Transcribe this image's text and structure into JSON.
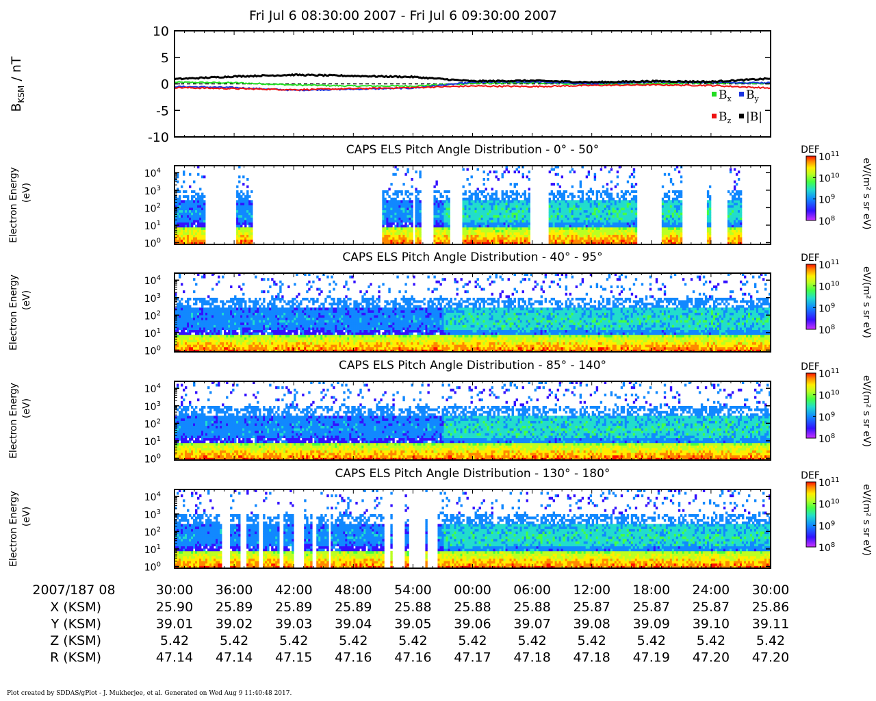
{
  "page": {
    "title": "Fri Jul 6 08:30:00 2007 - Fri Jul 6 09:30:00 2007",
    "footer": "Plot created by SDDAS/gPlot - J. Mukherjee, et al.  Generated on Wed Aug 9 11:40:48 2017."
  },
  "chart_data": [
    {
      "type": "line",
      "name": "magnetometer",
      "ylabel_main": "B",
      "ylabel_sub": "KSM",
      "ylabel_unit": " / nT",
      "ylim": [
        -10,
        10
      ],
      "yticks": [
        10,
        5,
        0,
        -5,
        -10
      ],
      "x": [
        "08:30",
        "08:36",
        "08:42",
        "08:48",
        "08:54",
        "09:00",
        "09:06",
        "09:12",
        "09:18",
        "09:24",
        "09:30"
      ],
      "zero_line": true,
      "legend_placement": "bottom-right",
      "series": [
        {
          "name": "Bx",
          "label_main": "B",
          "label_sub": "x",
          "color": "#22dd22",
          "values": [
            0.3,
            0.2,
            -0.2,
            -0.4,
            -0.4,
            0.1,
            0.2,
            -0.1,
            0.0,
            0.2,
            0.1
          ]
        },
        {
          "name": "By",
          "label_main": "B",
          "label_sub": "y",
          "color": "#1a33e0",
          "values": [
            -0.5,
            -0.7,
            -1.2,
            -1.0,
            -0.8,
            0.3,
            0.4,
            0.0,
            0.4,
            0.3,
            0.2
          ]
        },
        {
          "name": "Bz",
          "label_main": "B",
          "label_sub": "z",
          "color": "#ee1111",
          "values": [
            -0.7,
            -0.9,
            -1.1,
            -0.9,
            -0.7,
            -0.4,
            -0.5,
            -0.3,
            -0.2,
            -0.3,
            -0.8
          ]
        },
        {
          "name": "|B|",
          "label_main": "|B|",
          "label_sub": "",
          "color": "#000000",
          "values": [
            0.9,
            1.4,
            1.7,
            1.5,
            1.3,
            0.5,
            0.6,
            0.3,
            0.5,
            0.4,
            1.0
          ]
        }
      ]
    },
    {
      "type": "heatmap",
      "title": "CAPS ELS Pitch Angle Distribution - 0° - 50°",
      "ylabel": "Electron Energy",
      "yunit": "(eV)",
      "yticks": [
        "10",
        "10",
        "10",
        "10",
        "10"
      ],
      "ytick_exp": [
        "0",
        "1",
        "2",
        "3",
        "4"
      ],
      "colorbar": {
        "label": "DEF",
        "unit": "eV/(m² s sr eV)",
        "ticks": [
          "10",
          "10",
          "10",
          "10"
        ],
        "tick_exp": [
          "8",
          "9",
          "10",
          "11"
        ]
      },
      "gaps": [
        [
          0.1,
          0.2
        ],
        [
          0.26,
          0.45
        ],
        [
          0.45,
          0.52
        ],
        [
          0.52,
          0.69
        ],
        [
          0.795,
          0.805
        ],
        [
          0.822,
          0.844
        ],
        [
          0.848,
          0.868
        ],
        [
          0.924,
          0.965
        ],
        [
          1.19,
          1.25
        ],
        [
          1.55,
          1.63
        ],
        [
          1.7,
          1.78
        ],
        [
          1.8,
          1.85
        ],
        [
          1.9,
          2.0
        ]
      ]
    },
    {
      "type": "heatmap",
      "title": "CAPS ELS Pitch Angle Distribution - 40° - 95°",
      "ylabel": "Electron Energy",
      "yunit": "(eV)",
      "yticks": [
        "10",
        "10",
        "10",
        "10",
        "10"
      ],
      "ytick_exp": [
        "0",
        "1",
        "2",
        "3",
        "4"
      ],
      "colorbar": {
        "label": "DEF",
        "unit": "eV/(m² s sr eV)",
        "ticks": [
          "10",
          "10",
          "10",
          "10"
        ],
        "tick_exp": [
          "8",
          "9",
          "10",
          "11"
        ]
      },
      "gaps": []
    },
    {
      "type": "heatmap",
      "title": "CAPS ELS Pitch Angle Distribution - 85° - 140°",
      "ylabel": "Electron Energy",
      "yunit": "(eV)",
      "yticks": [
        "10",
        "10",
        "10",
        "10",
        "10"
      ],
      "ytick_exp": [
        "0",
        "1",
        "2",
        "3",
        "4"
      ],
      "colorbar": {
        "label": "DEF",
        "unit": "eV/(m² s sr eV)",
        "ticks": [
          "10",
          "10",
          "10",
          "10"
        ],
        "tick_exp": [
          "8",
          "9",
          "10",
          "11"
        ]
      },
      "gaps": []
    },
    {
      "type": "heatmap",
      "title": "CAPS ELS Pitch Angle Distribution - 130° - 180°",
      "ylabel": "Electron Energy",
      "yunit": "(eV)",
      "yticks": [
        "10",
        "10",
        "10",
        "10",
        "10"
      ],
      "ytick_exp": [
        "0",
        "1",
        "2",
        "3",
        "4"
      ],
      "colorbar": {
        "label": "DEF",
        "unit": "eV/(m² s sr eV)",
        "ticks": [
          "10",
          "10",
          "10",
          "10"
        ],
        "tick_exp": [
          "8",
          "9",
          "10",
          "11"
        ]
      },
      "gaps": [
        [
          0.155,
          0.185
        ],
        [
          0.22,
          0.235
        ],
        [
          0.28,
          0.295
        ],
        [
          0.35,
          0.365
        ],
        [
          0.4,
          0.43
        ],
        [
          0.46,
          0.47
        ],
        [
          0.505,
          0.51
        ],
        [
          0.515,
          0.52
        ],
        [
          0.7,
          0.72
        ],
        [
          0.725,
          0.77
        ],
        [
          0.785,
          0.838
        ],
        [
          0.845,
          0.88
        ]
      ]
    }
  ],
  "axis_table": {
    "time_label": "2007/187 08",
    "times": [
      "30:00",
      "36:00",
      "42:00",
      "48:00",
      "54:00",
      "00:00",
      "06:00",
      "12:00",
      "18:00",
      "24:00",
      "30:00"
    ],
    "rows": [
      {
        "label": "X (KSM)",
        "values": [
          "25.90",
          "25.89",
          "25.89",
          "25.89",
          "25.88",
          "25.88",
          "25.88",
          "25.87",
          "25.87",
          "25.87",
          "25.86"
        ]
      },
      {
        "label": "Y (KSM)",
        "values": [
          "39.01",
          "39.02",
          "39.03",
          "39.04",
          "39.05",
          "39.06",
          "39.07",
          "39.08",
          "39.09",
          "39.10",
          "39.11"
        ]
      },
      {
        "label": "Z (KSM)",
        "values": [
          "5.42",
          "5.42",
          "5.42",
          "5.42",
          "5.42",
          "5.42",
          "5.42",
          "5.42",
          "5.42",
          "5.42",
          "5.42"
        ]
      },
      {
        "label": "R (KSM)",
        "values": [
          "47.14",
          "47.14",
          "47.15",
          "47.16",
          "47.16",
          "47.17",
          "47.18",
          "47.18",
          "47.19",
          "47.20",
          "47.20"
        ]
      }
    ]
  }
}
